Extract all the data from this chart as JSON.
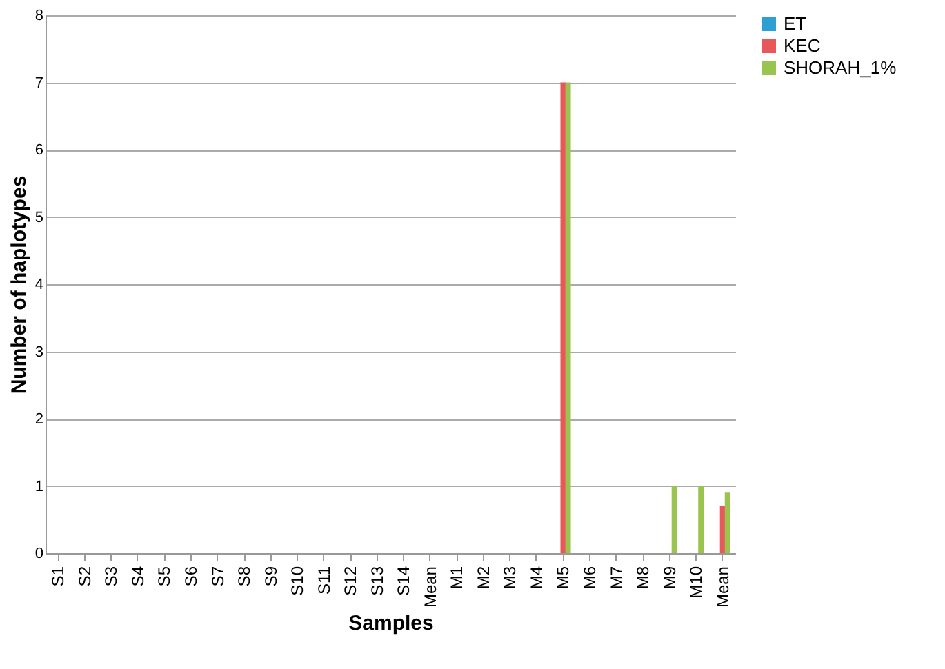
{
  "chart_data": {
    "type": "bar",
    "xlabel": "Samples",
    "ylabel": "Number of haplotypes",
    "categories": [
      "S1",
      "S2",
      "S3",
      "S4",
      "S5",
      "S6",
      "S7",
      "S8",
      "S9",
      "S10",
      "S11",
      "S12",
      "S13",
      "S14",
      "Mean",
      "M1",
      "M2",
      "M3",
      "M4",
      "M5",
      "M6",
      "M7",
      "M8",
      "M9",
      "M10",
      "Mean"
    ],
    "series": [
      {
        "name": "ET",
        "color": "#2e9fd2",
        "values": [
          0,
          0,
          0,
          0,
          0,
          0,
          0,
          0,
          0,
          0,
          0,
          0,
          0,
          0,
          0,
          0,
          0,
          0,
          0,
          0,
          0,
          0,
          0,
          0,
          0,
          0
        ]
      },
      {
        "name": "KEC",
        "color": "#e8585a",
        "values": [
          0,
          0,
          0,
          0,
          0,
          0,
          0,
          0,
          0,
          0,
          0,
          0,
          0,
          0,
          0,
          0,
          0,
          0,
          0,
          7,
          0,
          0,
          0,
          0,
          0,
          0.7
        ]
      },
      {
        "name": "SHORAH_1%",
        "color": "#9bc34f",
        "values": [
          0,
          0,
          0,
          0,
          0,
          0,
          0,
          0,
          0,
          0,
          0,
          0,
          0,
          0,
          0,
          0,
          0,
          0,
          0,
          7,
          0,
          0,
          0,
          1,
          1,
          0.9
        ]
      }
    ],
    "ylim": [
      0,
      8
    ],
    "yticks": [
      0,
      1,
      2,
      3,
      4,
      5,
      6,
      7,
      8
    ],
    "grid": "y",
    "legend": "right"
  }
}
